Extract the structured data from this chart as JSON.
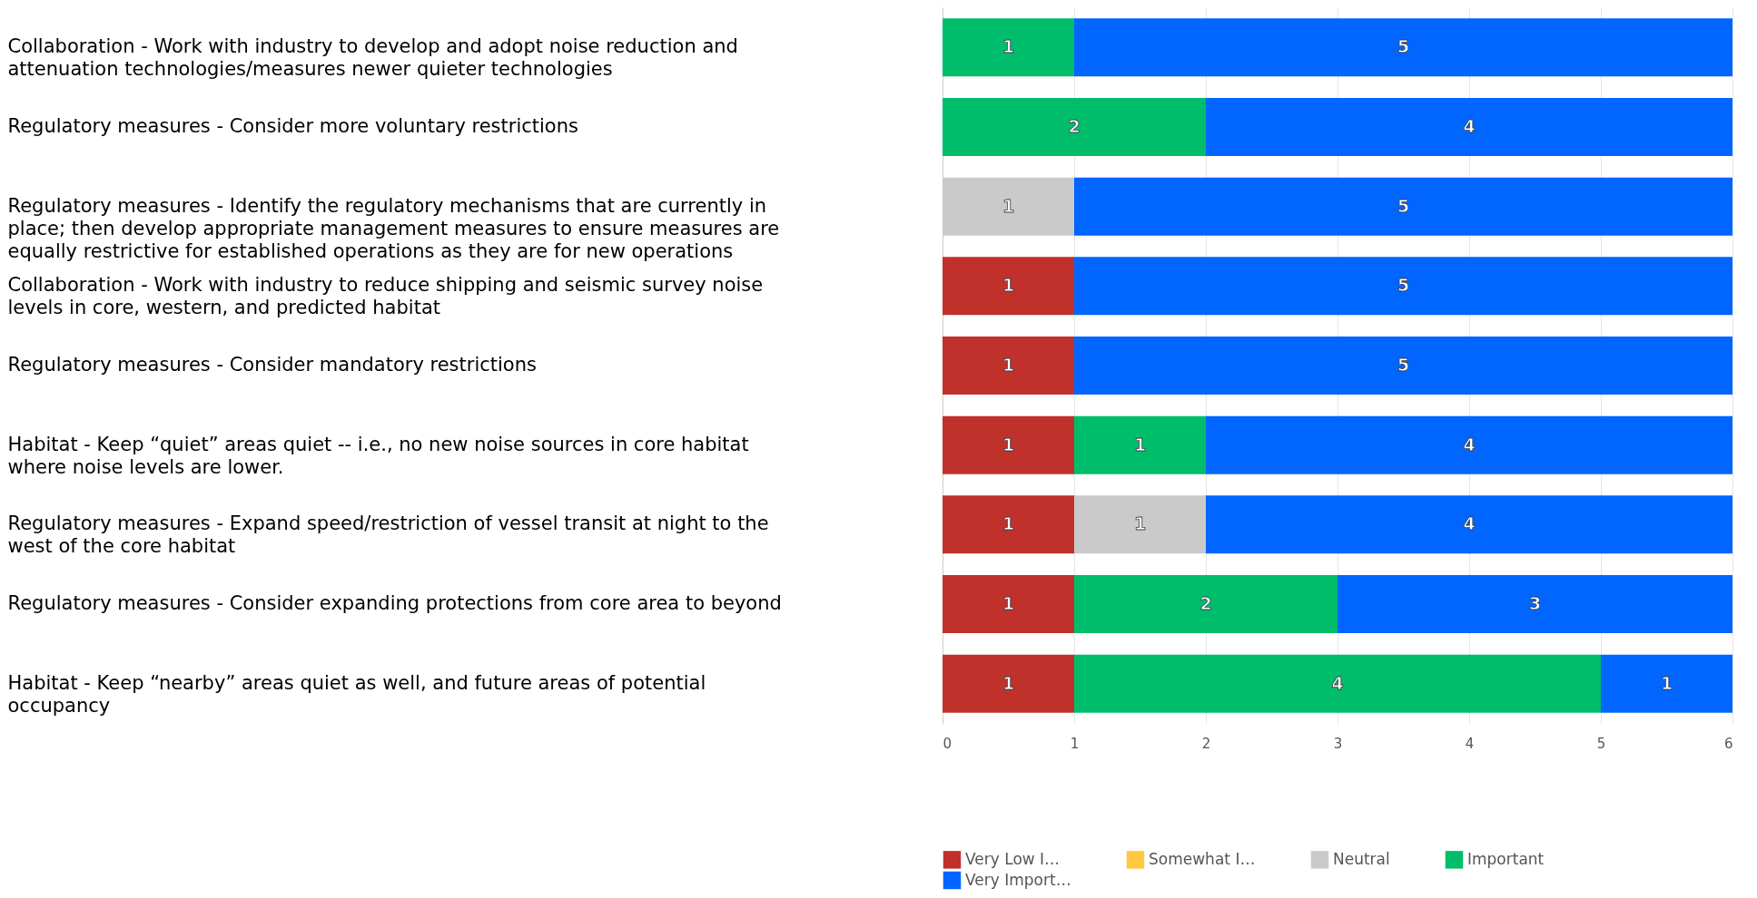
{
  "chart_data": {
    "type": "bar",
    "orientation": "horizontal",
    "stacked": true,
    "categories": [
      "Collaboration - Work with industry to develop and adopt noise reduction and attenuation technologies/measures newer quieter technologies",
      "Regulatory measures - Consider more voluntary restrictions",
      "Regulatory measures - Identify the regulatory mechanisms that are currently in place; then develop appropriate management measures to ensure measures are equally restrictive for established operations as they are for new operations",
      "Collaboration - Work with industry to reduce shipping and seismic survey noise levels in core, western, and predicted habitat",
      "Regulatory measures - Consider mandatory restrictions",
      "Habitat - Keep “quiet” areas quiet -- i.e., no new noise sources in core habitat where noise levels are lower.",
      "Regulatory measures - Expand speed/restriction of vessel transit at night to the west of the core habitat",
      "Regulatory measures - Consider expanding protections from core area to beyond",
      "Habitat - Keep “nearby” areas quiet as well, and future areas of potential occupancy"
    ],
    "series": [
      {
        "name": "Very Low I…",
        "color": "#c0312b",
        "values": [
          null,
          null,
          null,
          1,
          1,
          1,
          1,
          1,
          1
        ]
      },
      {
        "name": "Somewhat I…",
        "color": "#ffc83d",
        "values": [
          null,
          null,
          null,
          null,
          null,
          null,
          null,
          null,
          null
        ]
      },
      {
        "name": "Neutral",
        "color": "#cacaca",
        "values": [
          null,
          null,
          1,
          null,
          null,
          null,
          1,
          null,
          null
        ]
      },
      {
        "name": "Important",
        "color": "#00bd6b",
        "values": [
          1,
          2,
          null,
          null,
          null,
          1,
          null,
          2,
          4
        ]
      },
      {
        "name": "Very Import…",
        "color": "#0066ff",
        "values": [
          5,
          4,
          5,
          5,
          5,
          4,
          4,
          3,
          1
        ]
      }
    ],
    "xlim": [
      0,
      6
    ],
    "xticks": [
      0,
      1,
      2,
      3,
      4,
      5,
      6
    ],
    "grid": "x",
    "legend": "bottom left",
    "data_labels": true
  }
}
